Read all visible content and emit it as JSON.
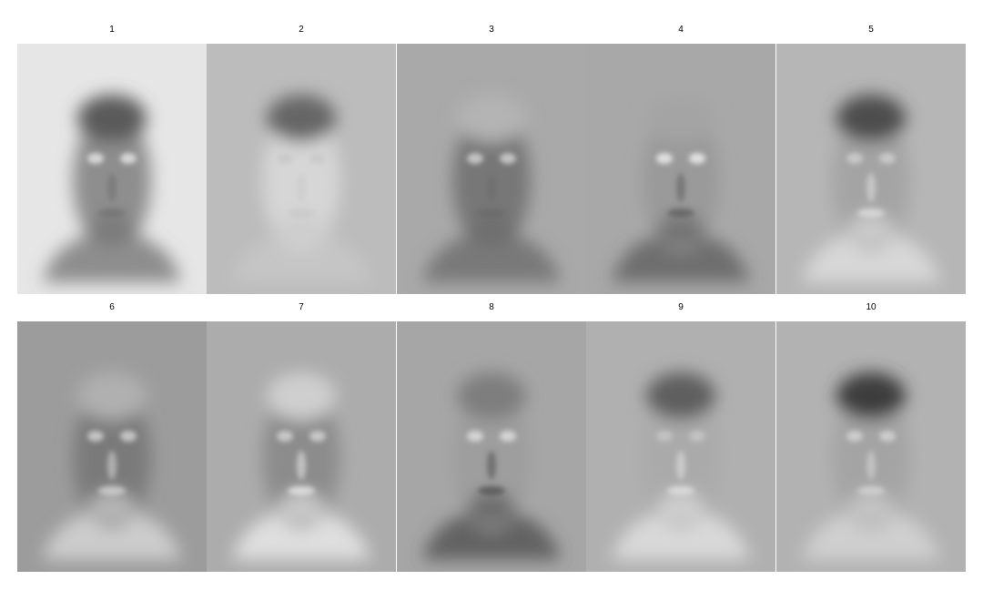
{
  "panels": [
    {
      "label": "1",
      "icon": "eigenface-icon",
      "bg": "#e6e6e6",
      "face": "#8e8e8e",
      "hair": "#5a5a5a",
      "eyes": "#d6d6d6",
      "shade": "#707070"
    },
    {
      "label": "2",
      "icon": "eigenface-icon",
      "bg": "#bcbcbc",
      "face": "#d6d6d6",
      "hair": "#666666",
      "eyes": "#cacaca",
      "shade": "#c8c8c8"
    },
    {
      "label": "3",
      "icon": "eigenface-icon",
      "bg": "#a9a9a9",
      "face": "#777777",
      "hair": "#b4b4b4",
      "eyes": "#c4c4c4",
      "shade": "#6a6a6a"
    },
    {
      "label": "4",
      "icon": "eigenface-icon",
      "bg": "#a8a8a8",
      "face": "#9a9a9a",
      "hair": "#a4a4a4",
      "eyes": "#e0e0e0",
      "shade": "#5c5c5c"
    },
    {
      "label": "5",
      "icon": "eigenface-icon",
      "bg": "#b6b6b6",
      "face": "#a4a4a4",
      "hair": "#4e4e4e",
      "eyes": "#c8c8c8",
      "shade": "#e2e2e2"
    },
    {
      "label": "6",
      "icon": "eigenface-icon",
      "bg": "#9c9c9c",
      "face": "#7a7a7a",
      "hair": "#b0b0b0",
      "eyes": "#c4c4c4",
      "shade": "#dcdcdc"
    },
    {
      "label": "7",
      "icon": "eigenface-icon",
      "bg": "#acacac",
      "face": "#8c8c8c",
      "hair": "#cfcfcf",
      "eyes": "#c8c8c8",
      "shade": "#efefef"
    },
    {
      "label": "8",
      "icon": "eigenface-icon",
      "bg": "#a6a6a6",
      "face": "#9e9e9e",
      "hair": "#7e7e7e",
      "eyes": "#d4d4d4",
      "shade": "#4c4c4c"
    },
    {
      "label": "9",
      "icon": "eigenface-icon",
      "bg": "#b0b0b0",
      "face": "#aaaaaa",
      "hair": "#5e5e5e",
      "eyes": "#c2c2c2",
      "shade": "#e6e6e6"
    },
    {
      "label": "10",
      "icon": "eigenface-icon",
      "bg": "#b2b2b2",
      "face": "#a4a4a4",
      "hair": "#3e3e3e",
      "eyes": "#cccccc",
      "shade": "#d8d8d8"
    }
  ]
}
